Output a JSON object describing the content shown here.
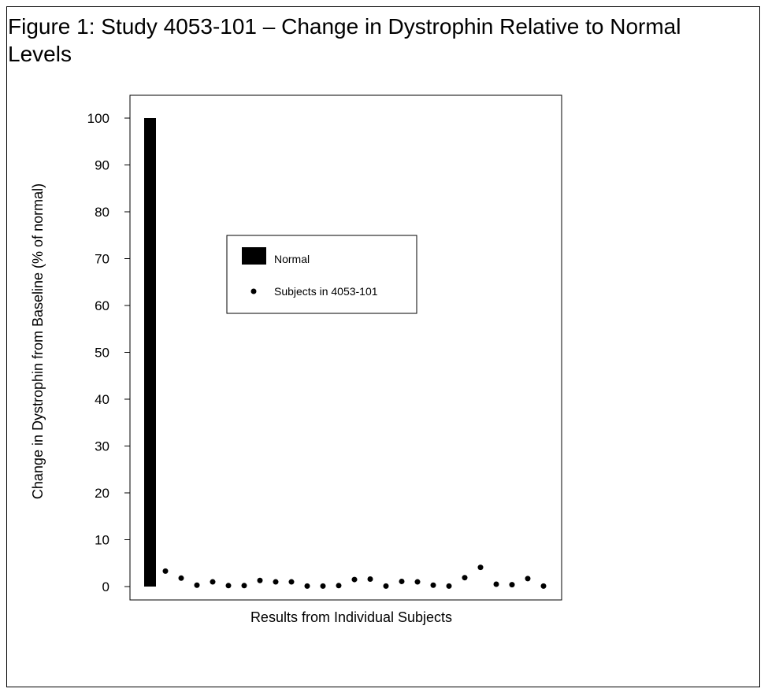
{
  "figure": {
    "caption": "Figure 1: Study 4053-101 – Change in Dystrophin Relative to Normal Levels"
  },
  "chart_data": {
    "type": "bar",
    "ylabel": "Change in Dystrophin from Baseline (% of normal)",
    "xlabel": "Results from Individual Subjects",
    "ylim": [
      0,
      100
    ],
    "yticks": [
      0,
      10,
      20,
      30,
      40,
      50,
      60,
      70,
      80,
      90,
      100
    ],
    "grid": false,
    "legend": {
      "placement": "center",
      "entries": [
        {
          "label": "Normal",
          "marker": "bar"
        },
        {
          "label": "Subjects in 4053-101",
          "marker": "point"
        }
      ]
    },
    "bar": {
      "name": "Normal",
      "value": 100
    },
    "points": {
      "name": "Subjects in 4053-101",
      "values": [
        3.3,
        1.8,
        0.3,
        1.0,
        0.2,
        0.2,
        1.3,
        1.0,
        1.0,
        0.1,
        0.1,
        0.2,
        1.5,
        1.6,
        0.1,
        1.1,
        1.0,
        0.3,
        0.1,
        1.9,
        4.1,
        0.5,
        0.4,
        1.7,
        0.1
      ]
    },
    "colors": {
      "bar": "#000000",
      "points": "#000000"
    }
  }
}
